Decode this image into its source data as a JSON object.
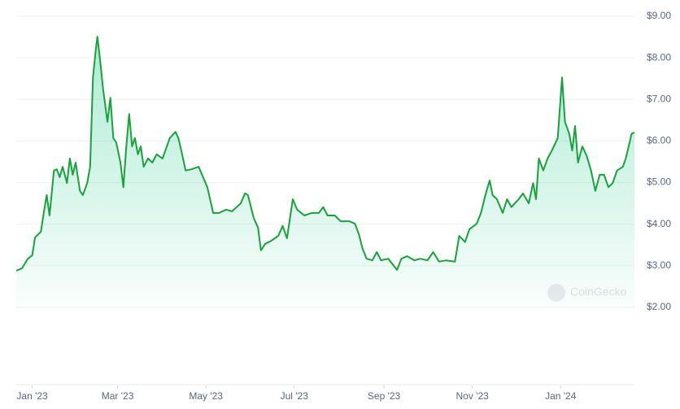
{
  "chart_data": {
    "type": "area",
    "watermark": "CoinGecko",
    "color": "#16c784",
    "line_color": "#15a33a",
    "grid": true,
    "x": [
      -11,
      -7,
      -3,
      0,
      2,
      6,
      8,
      10,
      12,
      15,
      17,
      19,
      21,
      24,
      26,
      28,
      30,
      33,
      35,
      38,
      40,
      42,
      44,
      45,
      47,
      49,
      52,
      54,
      56,
      58,
      61,
      63,
      65,
      67,
      69,
      71,
      73,
      75,
      77,
      80,
      83,
      86,
      90,
      93,
      95,
      99,
      101,
      103,
      106,
      110,
      115,
      118,
      121,
      125,
      129,
      134,
      138,
      144,
      147,
      149,
      153,
      156,
      158,
      161,
      165,
      170,
      173,
      176,
      180,
      183,
      188,
      193,
      198,
      201,
      204,
      209,
      213,
      219,
      223,
      226,
      228,
      231,
      235,
      238,
      241,
      246,
      252,
      255,
      259,
      264,
      268,
      273,
      277,
      281,
      286,
      292,
      295,
      299,
      302,
      307,
      310,
      313,
      316,
      318,
      321,
      325,
      328,
      331,
      336,
      339,
      343,
      346,
      348,
      350,
      353,
      356,
      359,
      363,
      365,
      366,
      368,
      371,
      373,
      375,
      377,
      380,
      383,
      386,
      389,
      392,
      395,
      398,
      401,
      404,
      408,
      410,
      412,
      414,
      416
    ],
    "values": [
      2.88,
      2.94,
      3.17,
      3.25,
      3.68,
      3.82,
      4.27,
      4.7,
      4.21,
      5.29,
      5.32,
      5.13,
      5.38,
      4.99,
      5.58,
      5.19,
      5.48,
      4.8,
      4.7,
      4.99,
      5.38,
      7.53,
      8.22,
      8.51,
      7.92,
      7.24,
      6.46,
      7.04,
      6.07,
      5.97,
      5.48,
      4.89,
      5.87,
      6.65,
      5.87,
      6.07,
      5.68,
      5.87,
      5.38,
      5.58,
      5.48,
      5.68,
      5.58,
      5.87,
      6.07,
      6.22,
      6.07,
      5.77,
      5.29,
      5.32,
      5.38,
      5.13,
      4.89,
      4.27,
      4.27,
      4.35,
      4.31,
      4.5,
      4.74,
      4.7,
      4.15,
      3.92,
      3.37,
      3.53,
      3.6,
      3.72,
      3.96,
      3.66,
      4.6,
      4.35,
      4.21,
      4.27,
      4.27,
      4.41,
      4.21,
      4.21,
      4.07,
      4.07,
      4.01,
      3.72,
      3.43,
      3.17,
      3.13,
      3.33,
      3.13,
      3.17,
      2.9,
      3.17,
      3.23,
      3.13,
      3.17,
      3.13,
      3.33,
      3.1,
      3.13,
      3.1,
      3.72,
      3.57,
      3.88,
      4.01,
      4.27,
      4.7,
      5.05,
      4.7,
      4.6,
      4.27,
      4.6,
      4.41,
      4.6,
      4.74,
      4.5,
      4.99,
      4.6,
      5.58,
      5.29,
      5.58,
      5.77,
      6.07,
      7.04,
      7.53,
      6.46,
      6.17,
      5.77,
      6.36,
      5.48,
      5.87,
      5.64,
      5.29,
      4.8,
      5.19,
      5.19,
      4.89,
      4.99,
      5.29,
      5.38,
      5.58,
      5.87,
      6.17,
      6.21
    ],
    "xlim": [
      -11,
      416
    ],
    "xticks": [
      {
        "value": 0,
        "label": "Jan '23"
      },
      {
        "value": 59,
        "label": "Mar '23"
      },
      {
        "value": 120,
        "label": "May '23"
      },
      {
        "value": 181,
        "label": "Jul '23"
      },
      {
        "value": 243,
        "label": "Sep '23"
      },
      {
        "value": 304,
        "label": "Nov '23"
      },
      {
        "value": 365,
        "label": "Jan '24"
      }
    ],
    "ylim": [
      2,
      9
    ],
    "yticks": [
      {
        "value": 9,
        "label": "$9.00"
      },
      {
        "value": 8,
        "label": "$8.00"
      },
      {
        "value": 7,
        "label": "$7.00"
      },
      {
        "value": 6,
        "label": "$6.00"
      },
      {
        "value": 5,
        "label": "$5.00"
      },
      {
        "value": 4,
        "label": "$4.00"
      },
      {
        "value": 3,
        "label": "$3.00"
      },
      {
        "value": 2,
        "label": "$2.00"
      }
    ]
  }
}
